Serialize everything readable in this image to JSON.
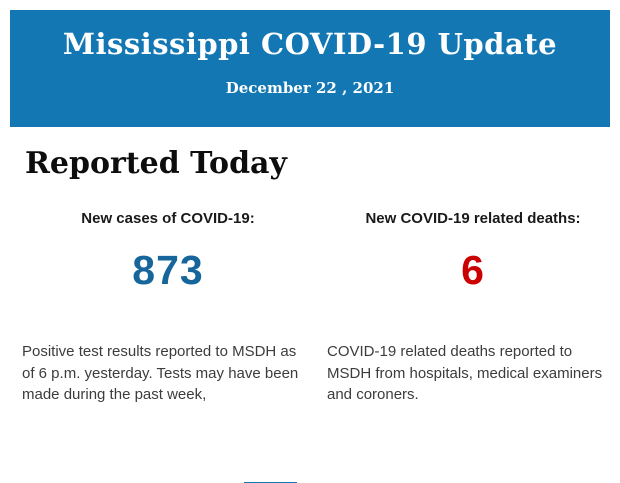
{
  "header": {
    "bg_color": "#1277b3",
    "text_color": "#ffffff",
    "title": "Mississippi COVID-19 Update",
    "date": "December 22 , 2021"
  },
  "section": {
    "heading": "Reported Today"
  },
  "stats": [
    {
      "label": "New cases of COVID-19:",
      "value": "873",
      "value_color": "#17669b",
      "description_lines": [
        "Positive test results reported to MSDH as",
        "of 6 p.m. yesterday. Tests may have been",
        "made during the past week,"
      ]
    },
    {
      "label": "New COVID-19 related deaths:",
      "value": "6",
      "value_color": "#cb0000",
      "description_lines": [
        "COVID-19 related deaths reported to",
        "MSDH from hospitals, medical examiners",
        "and coroners."
      ]
    }
  ],
  "footer": {
    "bar_color": "#1277b3"
  }
}
